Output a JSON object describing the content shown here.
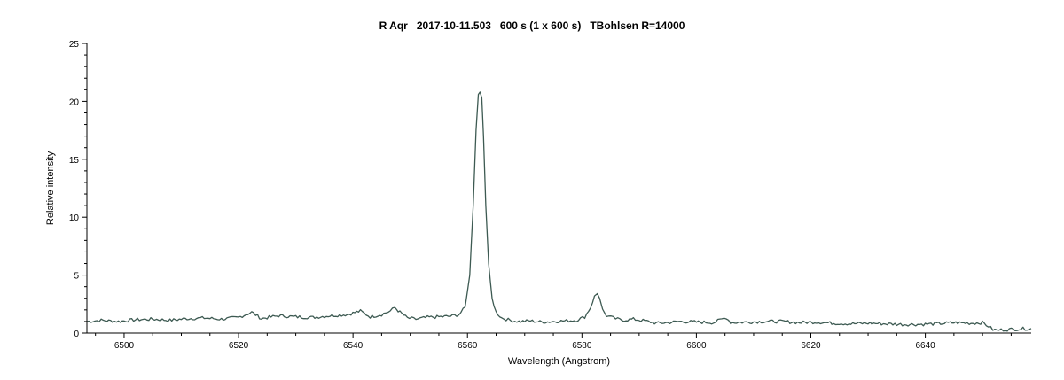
{
  "chart_data": {
    "type": "line",
    "title": "R Aqr   2017-10-11.503   600 s (1 x 600 s)   TBohlsen R=14000",
    "xlabel": "Wavelength (Angstrom)",
    "ylabel": "Relative intensity",
    "xlim": [
      6493.5,
      6658.5
    ],
    "ylim": [
      0,
      25
    ],
    "xticks": [
      6500,
      6520,
      6540,
      6560,
      6580,
      6600,
      6620,
      6640
    ],
    "xtick_labels": [
      "6500",
      "6520",
      "6540",
      "6560",
      "6580",
      "6600",
      "6620",
      "6640"
    ],
    "yticks": [
      0,
      5,
      10,
      15,
      20,
      25
    ],
    "ytick_labels": [
      "0",
      "5",
      "10",
      "15",
      "20",
      "25"
    ],
    "grid": false,
    "line_color": "#3d5a52",
    "series": [
      {
        "x": [
          6493.5,
          6496,
          6499,
          6502,
          6505,
          6508,
          6511,
          6514,
          6517,
          6520,
          6522.3,
          6524,
          6527,
          6530,
          6533,
          6536,
          6539,
          6541.3,
          6543,
          6545,
          6546.5,
          6547.3,
          6548.2,
          6549.5,
          6551,
          6553,
          6555,
          6557,
          6558.5,
          6559.6,
          6560.4,
          6561,
          6561.5,
          6561.9,
          6562.2,
          6562.5,
          6562.8,
          6563.2,
          6563.7,
          6564.3,
          6565,
          6566,
          6567.5,
          6569,
          6571,
          6573,
          6575,
          6577,
          6579,
          6580.5,
          6581.5,
          6582.2,
          6582.7,
          6583.1,
          6583.6,
          6584.3,
          6585.5,
          6587,
          6589,
          6591,
          6593,
          6595,
          6597,
          6600,
          6603,
          6605.2,
          6606,
          6609,
          6612,
          6615,
          6618,
          6621,
          6624,
          6627,
          6630,
          6633,
          6636,
          6639,
          6642,
          6645,
          6648,
          6650,
          6651,
          6651.8,
          6652.5,
          6654,
          6656,
          6658.5
        ],
        "y": [
          1.0,
          1.1,
          1.0,
          1.15,
          1.2,
          1.1,
          1.25,
          1.3,
          1.2,
          1.35,
          1.8,
          1.25,
          1.5,
          1.4,
          1.35,
          1.5,
          1.6,
          1.9,
          1.4,
          1.6,
          1.9,
          2.2,
          1.8,
          1.3,
          1.2,
          1.35,
          1.4,
          1.45,
          1.6,
          2.2,
          5.0,
          11.0,
          17.5,
          20.6,
          20.8,
          20.3,
          17.0,
          11.0,
          6.0,
          3.0,
          1.8,
          1.3,
          1.1,
          1.0,
          1.05,
          0.95,
          1.0,
          1.05,
          1.1,
          1.4,
          2.2,
          3.2,
          3.4,
          3.0,
          2.0,
          1.5,
          1.3,
          1.1,
          1.2,
          1.05,
          0.85,
          0.9,
          1.0,
          0.95,
          0.9,
          1.35,
          0.9,
          0.95,
          1.0,
          1.0,
          0.9,
          0.95,
          0.85,
          0.8,
          0.85,
          0.8,
          0.75,
          0.75,
          0.8,
          0.9,
          0.85,
          0.9,
          0.6,
          0.3,
          0.25,
          0.3,
          0.35,
          0.4
        ]
      }
    ]
  }
}
